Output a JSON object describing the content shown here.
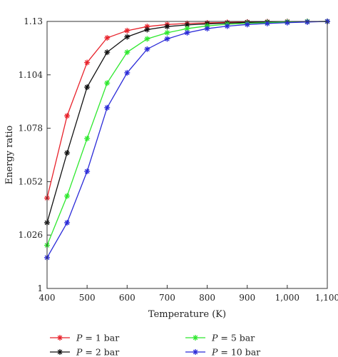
{
  "chart_data": {
    "type": "line",
    "title": "",
    "xlabel": "Temperature (K)",
    "ylabel": "Energy ratio",
    "xlim": [
      400,
      1100
    ],
    "ylim": [
      1,
      1.13
    ],
    "xticks": [
      400,
      500,
      600,
      700,
      800,
      900,
      1000,
      1100
    ],
    "xtick_labels": [
      "400",
      "500",
      "600",
      "700",
      "800",
      "900",
      "1,000",
      "1,100"
    ],
    "yticks": [
      1,
      1.026,
      1.052,
      1.078,
      1.104,
      1.13
    ],
    "ytick_labels": [
      "1",
      "1.026",
      "1.052",
      "1.078",
      "1.104",
      "1.13"
    ],
    "grid": false,
    "legend_position": "bottom",
    "x": [
      400,
      450,
      500,
      550,
      600,
      650,
      700,
      750,
      800,
      850,
      900,
      950,
      1000,
      1050,
      1100
    ],
    "series": [
      {
        "name_var": "P",
        "name_rest": " = 1 bar",
        "color": "#e8222b",
        "values": [
          1.044,
          1.084,
          1.11,
          1.122,
          1.1255,
          1.1275,
          1.1285,
          1.129,
          1.1293,
          1.1295,
          1.1297,
          1.1298,
          1.1299,
          1.1299,
          1.13
        ]
      },
      {
        "name_var": "P",
        "name_rest": " = 2 bar",
        "color": "#111111",
        "values": [
          1.032,
          1.066,
          1.098,
          1.115,
          1.1225,
          1.126,
          1.1275,
          1.1283,
          1.1288,
          1.1292,
          1.1295,
          1.1297,
          1.1298,
          1.1299,
          1.13
        ]
      },
      {
        "name_var": "P",
        "name_rest": " = 5 bar",
        "color": "#2ee82e",
        "values": [
          1.021,
          1.045,
          1.073,
          1.1,
          1.115,
          1.1215,
          1.1245,
          1.1265,
          1.1278,
          1.1286,
          1.1291,
          1.1294,
          1.1297,
          1.1299,
          1.13
        ]
      },
      {
        "name_var": "P",
        "name_rest": " = 10 bar",
        "color": "#2a2ad8",
        "values": [
          1.015,
          1.032,
          1.057,
          1.088,
          1.105,
          1.1165,
          1.1215,
          1.1245,
          1.1265,
          1.1277,
          1.1285,
          1.129,
          1.1294,
          1.1297,
          1.13
        ]
      }
    ]
  }
}
